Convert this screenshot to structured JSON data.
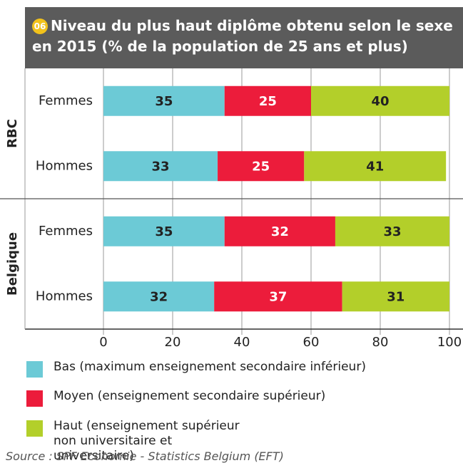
{
  "chart_data": {
    "type": "stacked-bar-horizontal",
    "badge": "06",
    "title": "Niveau du plus haut diplôme obtenu selon le sexe en 2015 (% de la population de 25 ans et plus)",
    "groups": [
      {
        "name": "RBC",
        "size": 2
      },
      {
        "name": "Belgique",
        "size": 2
      }
    ],
    "categories": [
      "Femmes",
      "Hommes",
      "Femmes",
      "Hommes"
    ],
    "series": [
      {
        "name": "Bas (maximum enseignement secondaire inférieur)",
        "color": "#6ccad6",
        "label_color": "#222222",
        "values": [
          35,
          33,
          35,
          32
        ]
      },
      {
        "name": "Moyen (enseignement secondaire supérieur)",
        "color": "#ec1c3b",
        "label_color": "#ffffff",
        "values": [
          25,
          25,
          32,
          37
        ]
      },
      {
        "name": "Haut (enseignement supérieur non universitaire et universitaire)",
        "color": "#b3cf2a",
        "label_color": "#222222",
        "values": [
          40,
          41,
          33,
          31
        ]
      }
    ],
    "xlim": [
      0,
      100
    ],
    "xticks": [
      0,
      20,
      40,
      60,
      80,
      100
    ],
    "grid": true,
    "source": "Source : SPF Economie - Statistics Belgium (EFT)"
  }
}
